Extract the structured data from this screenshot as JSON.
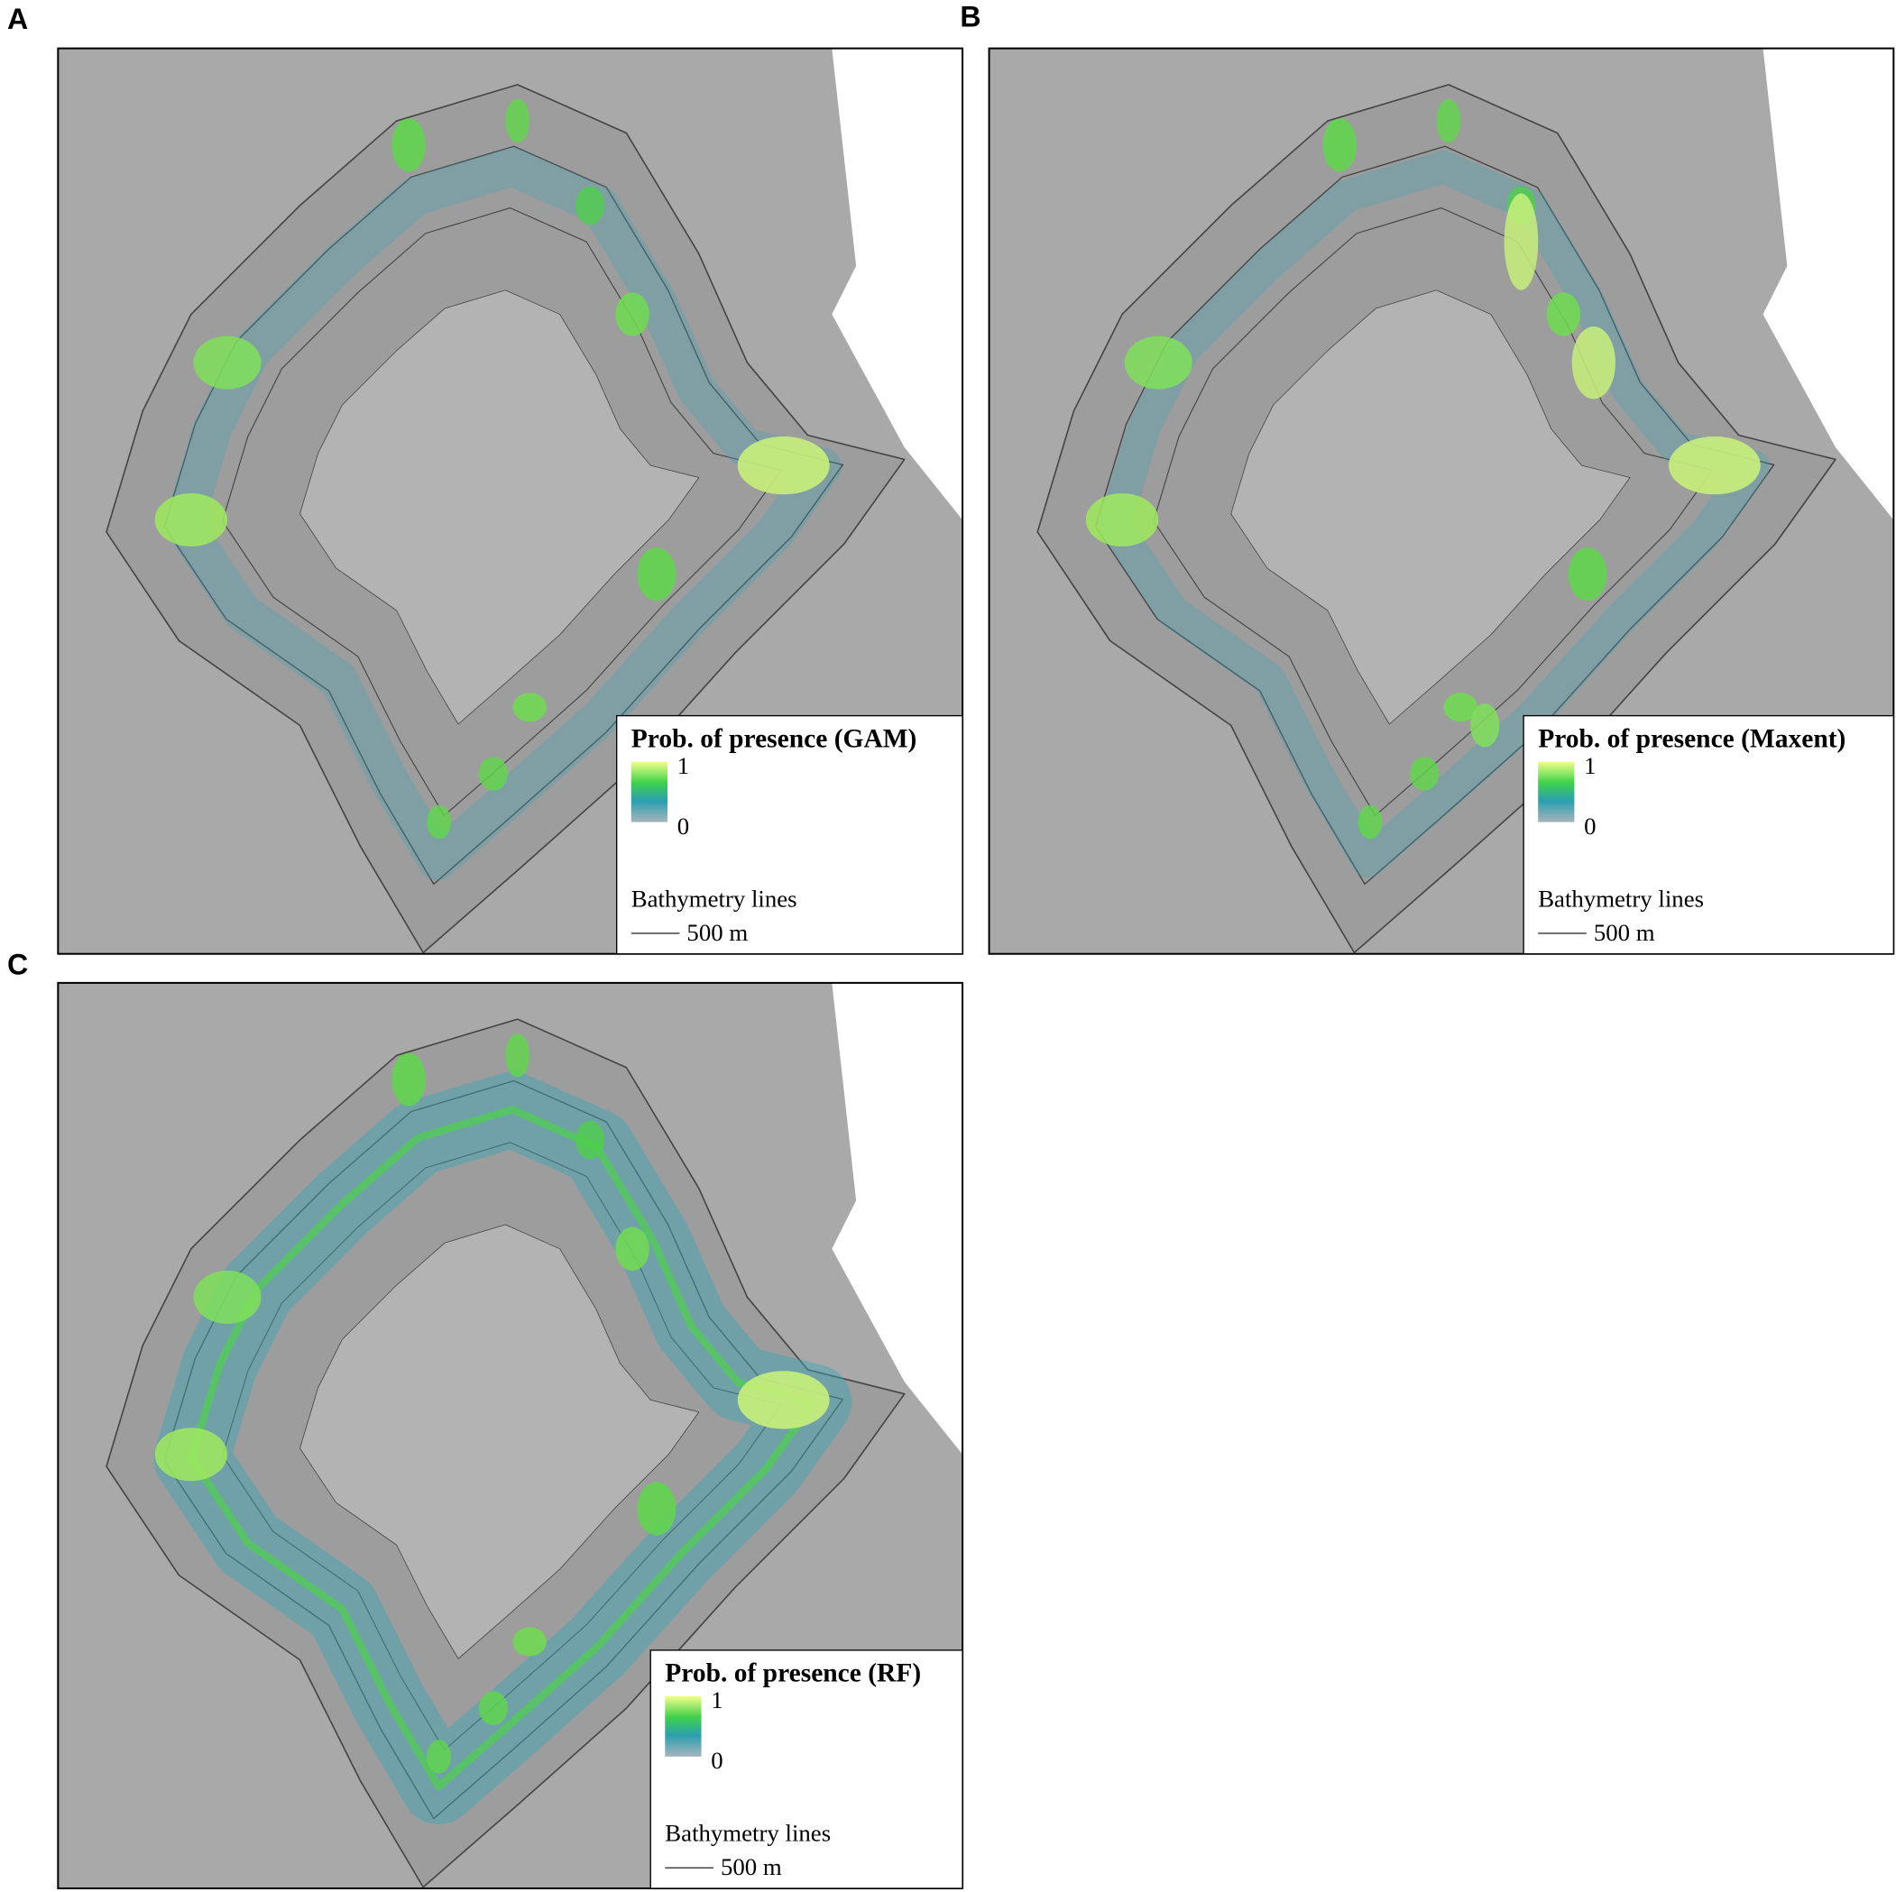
{
  "panels": [
    {
      "label": "A",
      "legend": {
        "title": "Prob. of presence (GAM)",
        "max": "1",
        "min": "0",
        "lines_title": "Bathymetry lines",
        "line_label": "500 m"
      }
    },
    {
      "label": "B",
      "legend": {
        "title": "Prob. of presence (Maxent)",
        "max": "1",
        "min": "0",
        "lines_title": "Bathymetry lines",
        "line_label": "500 m"
      }
    },
    {
      "label": "C",
      "legend": {
        "title": "Prob. of presence (RF)",
        "max": "1",
        "min": "0",
        "lines_title": "Bathymetry lines",
        "line_label": "500 m"
      }
    }
  ]
}
